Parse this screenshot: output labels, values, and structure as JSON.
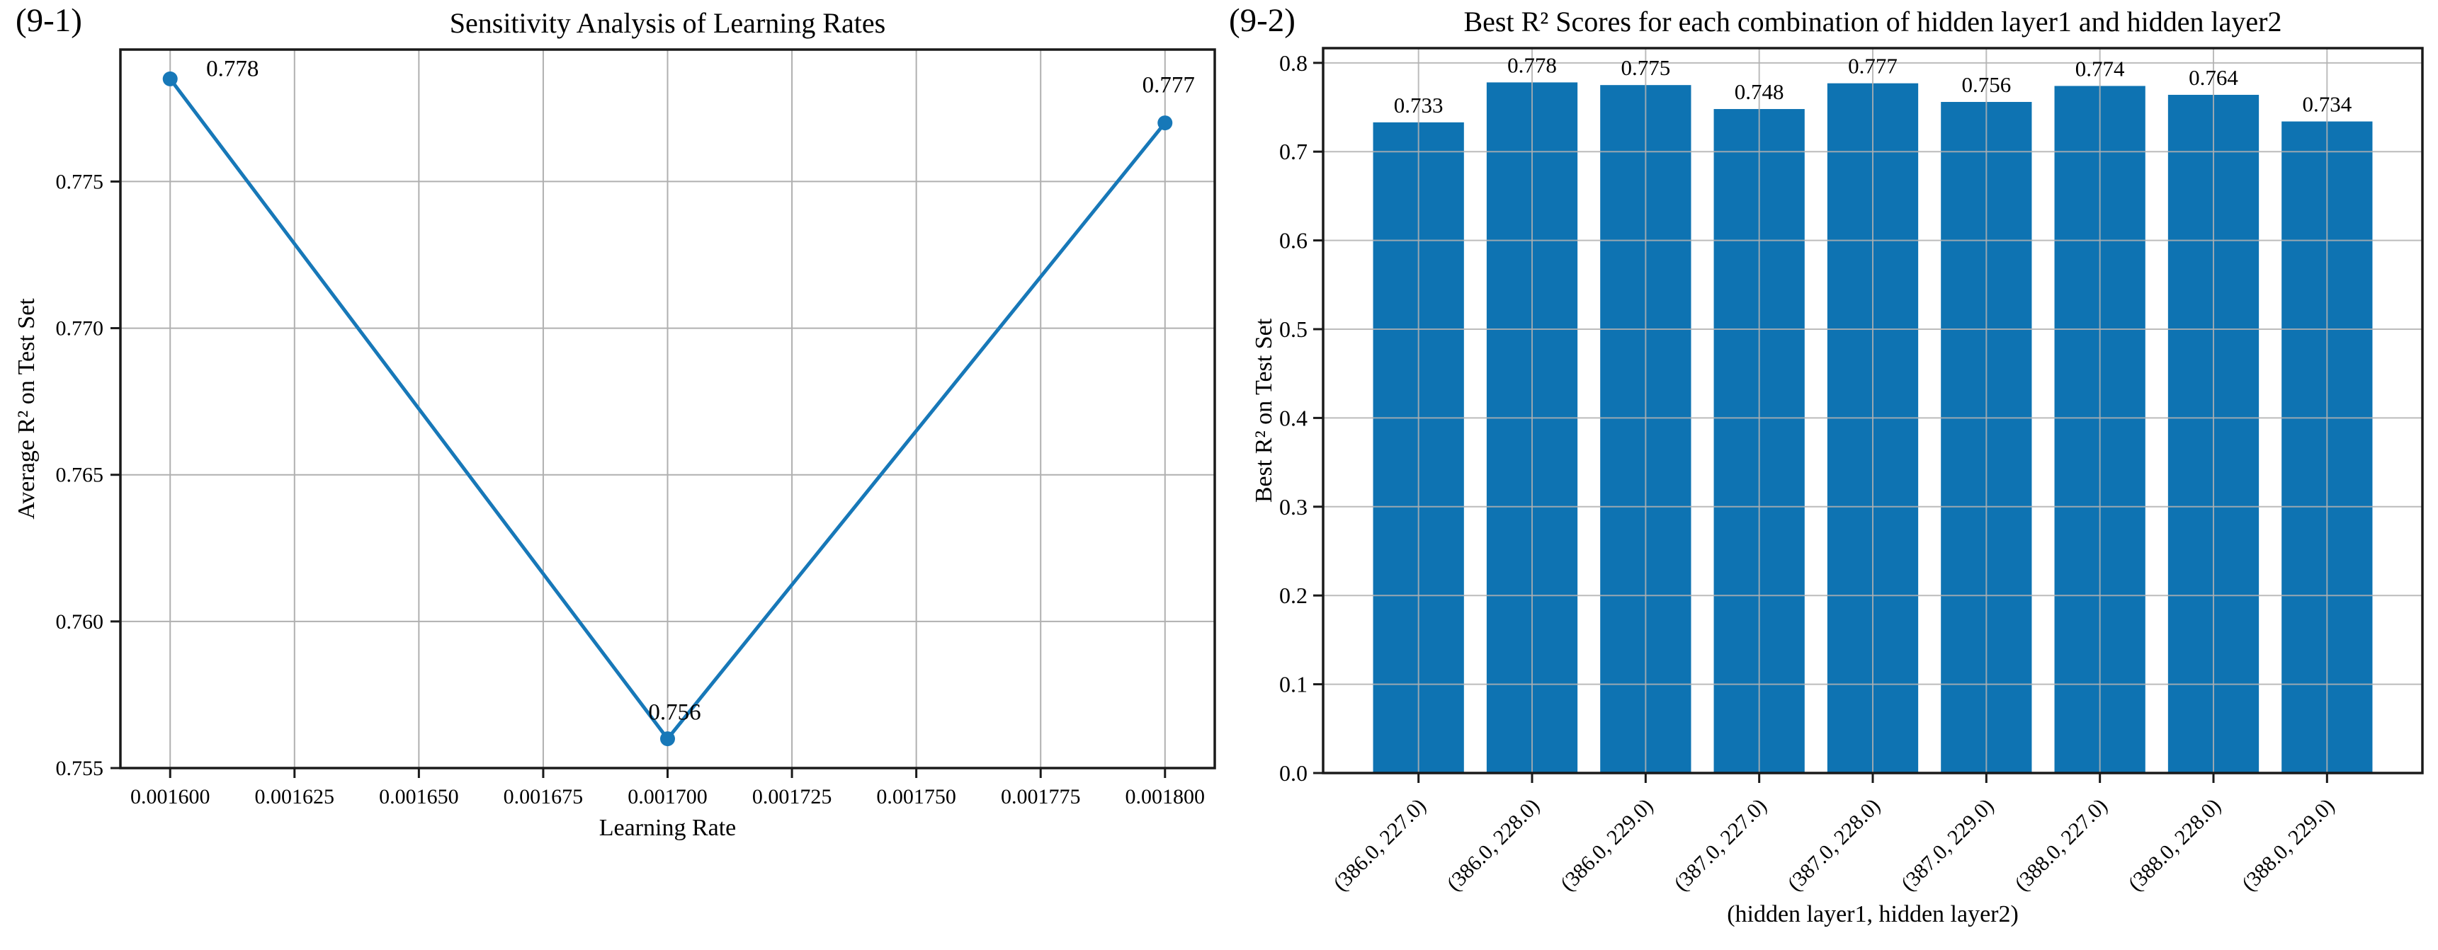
{
  "figure": {
    "background": "#ffffff",
    "grid_color": "#b0b0b0",
    "spine_color": "#1a1a1a",
    "text_color": "#000000"
  },
  "chart_data": [
    {
      "type": "line",
      "panel_label": "(9-1)",
      "title": "Sensitivity Analysis of Learning Rates",
      "xlabel": "Learning Rate",
      "ylabel": "Average  R²  on Test Set",
      "x": [
        0.0016,
        0.0017,
        0.0018
      ],
      "y": [
        0.7785,
        0.756,
        0.777
      ],
      "point_labels": [
        "0.778",
        "0.756",
        "0.777"
      ],
      "xlim": [
        0.00159,
        0.00181
      ],
      "ylim": [
        0.755,
        0.7795
      ],
      "xticks": [
        0.0016,
        0.001625,
        0.00165,
        0.001675,
        0.0017,
        0.001725,
        0.00175,
        0.001775,
        0.0018
      ],
      "xtick_labels": [
        "0.001600",
        "0.001625",
        "0.001650",
        "0.001675",
        "0.001700",
        "0.001725",
        "0.001750",
        "0.001775",
        "0.001800"
      ],
      "yticks": [
        0.755,
        0.76,
        0.765,
        0.77,
        0.775
      ],
      "ytick_labels": [
        "0.755",
        "0.760",
        "0.765",
        "0.770",
        "0.775"
      ],
      "line_color": "#1778b8",
      "marker": "circle",
      "grid": true,
      "legend": null
    },
    {
      "type": "bar",
      "panel_label": "(9-2)",
      "title": "Best  R²  Scores for each combination of hidden layer1 and hidden layer2",
      "xlabel": "(hidden layer1, hidden layer2)",
      "ylabel": "Best  R²  on Test Set",
      "categories": [
        "(386.0, 227.0)",
        "(386.0, 228.0)",
        "(386.0, 229.0)",
        "(387.0, 227.0)",
        "(387.0, 228.0)",
        "(387.0, 229.0)",
        "(388.0, 227.0)",
        "(388.0, 228.0)",
        "(388.0, 229.0)"
      ],
      "values": [
        0.733,
        0.778,
        0.775,
        0.748,
        0.777,
        0.756,
        0.774,
        0.764,
        0.734
      ],
      "bar_labels": [
        "0.733",
        "0.778",
        "0.775",
        "0.748",
        "0.777",
        "0.756",
        "0.774",
        "0.764",
        "0.734"
      ],
      "ylim": [
        0,
        0.8166
      ],
      "yticks": [
        0.0,
        0.1,
        0.2,
        0.3,
        0.4,
        0.5,
        0.6,
        0.7,
        0.8
      ],
      "ytick_labels": [
        "0.0",
        "0.1",
        "0.2",
        "0.3",
        "0.4",
        "0.5",
        "0.6",
        "0.7",
        "0.8"
      ],
      "bar_color": "#0e73b2",
      "xtick_rotation_deg": 45,
      "grid": true,
      "legend": null
    }
  ]
}
